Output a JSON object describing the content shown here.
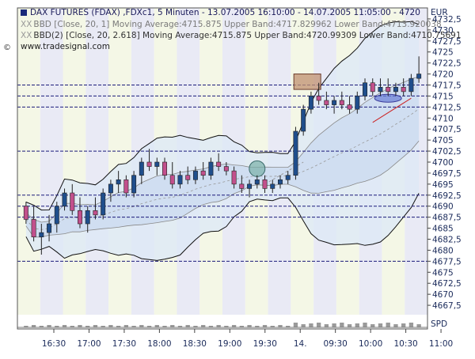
{
  "header": {
    "title": "DAX FUTURES (FDAX) ,FDXc1, 5 Minuten - 13.07.2005 16:10:00 - 14.07.2005 11:05:00 - 4720",
    "indicator1": "BBD [Close, 20, 1] Moving Average:4715.875 Upper Band:4717.829962 Lower Band:4713.920038",
    "indicator2": "BBD(2) [Close, 20, 2.618] Moving Average:4715.875 Upper Band:4720.99309 Lower Band:4710.75691",
    "website": "www.tradesignal.com",
    "copyright": "©",
    "xx": "XX",
    "currency": "EUR",
    "volume_label": "SPD"
  },
  "colors": {
    "band_outer_fill": "#dde8f6",
    "band_inner_fill": "#c9d9ef",
    "stripe_a": "#f4f7e6",
    "stripe_b": "#e9eaf5",
    "bull_candle": "#1f4e8c",
    "bear_candle": "#c2508c",
    "dashed_line": "#1a1a7a",
    "band_line": "#111111",
    "highlight_box": "#c09070",
    "highlight_circle": "#7ab0a8",
    "highlight_ellipse": "#6a7fd6",
    "trend_line": "#cc2222"
  },
  "chart_data": {
    "type": "candlestick",
    "y_ticks": [
      "4667,5",
      "4670",
      "4672,5",
      "4675",
      "4677,5",
      "4680",
      "4682,5",
      "4685",
      "4687,5",
      "4690",
      "4692,5",
      "4695",
      "4697,5",
      "4700",
      "4702,5",
      "4705",
      "4707,5",
      "4710",
      "4712,5",
      "4715",
      "4717,5",
      "4720",
      "4722,5",
      "4725",
      "4727,5",
      "4730",
      "4732,5"
    ],
    "x_tick_labels": [
      "16:30",
      "17:00",
      "17:30",
      "18:00",
      "18:30",
      "19:00",
      "19:30",
      "14.",
      "09:30",
      "10:00",
      "10:30",
      "11:00"
    ],
    "ylim": [
      4665,
      4735
    ],
    "horizontal_levels": [
      4717.5,
      4715,
      4712.5,
      4702.5,
      4692.5,
      4690,
      4687.5,
      4677.5
    ],
    "candles": [
      [
        4690,
        4691,
        4686,
        4687
      ],
      [
        4687,
        4690,
        4682,
        4683
      ],
      [
        4683,
        4686,
        4679,
        4684
      ],
      [
        4684,
        4688,
        4682,
        4686
      ],
      [
        4686,
        4691,
        4684,
        4690
      ],
      [
        4690,
        4694,
        4689,
        4693
      ],
      [
        4693,
        4695,
        4688,
        4689
      ],
      [
        4689,
        4692,
        4685,
        4686
      ],
      [
        4686,
        4690,
        4684,
        4689
      ],
      [
        4689,
        4692,
        4687,
        4688
      ],
      [
        4688,
        4694,
        4687,
        4693
      ],
      [
        4693,
        4696,
        4691,
        4695
      ],
      [
        4695,
        4698,
        4693,
        4696
      ],
      [
        4696,
        4697,
        4692,
        4693
      ],
      [
        4693,
        4698,
        4692,
        4697
      ],
      [
        4697,
        4701,
        4695,
        4700
      ],
      [
        4700,
        4703,
        4698,
        4699
      ],
      [
        4699,
        4701,
        4697,
        4700
      ],
      [
        4700,
        4701,
        4696,
        4697
      ],
      [
        4697,
        4700,
        4694,
        4695
      ],
      [
        4695,
        4698,
        4694,
        4697
      ],
      [
        4697,
        4699,
        4695,
        4696
      ],
      [
        4696,
        4699,
        4695,
        4698
      ],
      [
        4698,
        4700,
        4696,
        4697
      ],
      [
        4697,
        4701,
        4696,
        4700
      ],
      [
        4700,
        4702,
        4698,
        4699
      ],
      [
        4699,
        4700,
        4697,
        4698
      ],
      [
        4698,
        4699,
        4694,
        4695
      ],
      [
        4695,
        4697,
        4693,
        4694
      ],
      [
        4694,
        4696,
        4692,
        4695
      ],
      [
        4695,
        4697,
        4694,
        4696
      ],
      [
        4696,
        4697,
        4693,
        4694
      ],
      [
        4694,
        4696,
        4693,
        4695
      ],
      [
        4695,
        4697,
        4694,
        4696
      ],
      [
        4696,
        4698,
        4695,
        4697
      ],
      [
        4697,
        4708,
        4696,
        4707
      ],
      [
        4707,
        4713,
        4706,
        4712
      ],
      [
        4712,
        4716,
        4711,
        4715
      ],
      [
        4715,
        4718,
        4713,
        4714
      ],
      [
        4714,
        4716,
        4712,
        4713
      ],
      [
        4713,
        4715,
        4711,
        4714
      ],
      [
        4714,
        4716,
        4712,
        4713
      ],
      [
        4713,
        4715,
        4711,
        4712
      ],
      [
        4712,
        4716,
        4711,
        4715
      ],
      [
        4715,
        4719,
        4714,
        4718
      ],
      [
        4718,
        4719,
        4715,
        4716
      ],
      [
        4716,
        4719,
        4715,
        4717
      ],
      [
        4717,
        4719,
        4715,
        4716
      ],
      [
        4716,
        4718,
        4715,
        4717
      ],
      [
        4717,
        4719,
        4715,
        4716
      ],
      [
        4716,
        4720,
        4715,
        4719
      ],
      [
        4719,
        4724,
        4718,
        4720
      ]
    ]
  }
}
